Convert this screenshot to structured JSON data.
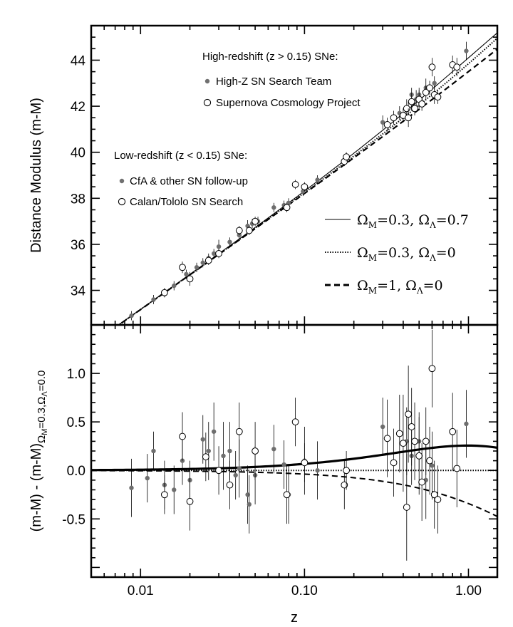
{
  "chart_data": {
    "type": "scatter",
    "x_axis": {
      "label": "z",
      "scale": "log",
      "range": [
        0.005,
        1.5
      ],
      "ticks": [
        0.01,
        0.1,
        1.0
      ],
      "tick_labels": [
        "0.01",
        "0.10",
        "1.00"
      ]
    },
    "legend": {
      "high_title": "High-redshift (z > 0.15) SNe:",
      "high_z_team": "High-Z SN Search Team",
      "scp": "Supernova Cosmology Project",
      "low_title": "Low-redshift (z < 0.15) SNe:",
      "cfa": "CfA & other SN follow-up",
      "calan": "Calan/Tololo SN Search"
    },
    "models": [
      {
        "style": "solid",
        "om": 0.3,
        "ol": 0.7
      },
      {
        "style": "dotted",
        "om": 0.3,
        "ol": 0.0
      },
      {
        "style": "dashed",
        "om": 1.0,
        "ol": 0.0
      }
    ],
    "top_panel": {
      "ylabel": "Distance Modulus (m-M)",
      "ylim": [
        32.5,
        45.5
      ],
      "ticks": [
        34,
        36,
        38,
        40,
        42,
        44
      ],
      "filled": [
        [
          0.0088,
          32.9,
          0.2
        ],
        [
          0.012,
          33.6,
          0.2
        ],
        [
          0.014,
          33.9,
          0.2
        ],
        [
          0.016,
          34.2,
          0.2
        ],
        [
          0.019,
          34.7,
          0.2
        ],
        [
          0.022,
          35.0,
          0.2
        ],
        [
          0.024,
          35.2,
          0.2
        ],
        [
          0.026,
          35.4,
          0.2
        ],
        [
          0.028,
          35.6,
          0.2
        ],
        [
          0.03,
          35.9,
          0.3
        ],
        [
          0.035,
          36.1,
          0.2
        ],
        [
          0.04,
          36.4,
          0.2
        ],
        [
          0.045,
          36.8,
          0.25
        ],
        [
          0.048,
          36.9,
          0.2
        ],
        [
          0.052,
          37.0,
          0.2
        ],
        [
          0.065,
          37.6,
          0.2
        ],
        [
          0.075,
          37.7,
          0.2
        ],
        [
          0.08,
          37.8,
          0.2
        ],
        [
          0.098,
          38.3,
          0.2
        ],
        [
          0.12,
          38.8,
          0.2
        ],
        [
          0.3,
          41.3,
          0.3
        ],
        [
          0.38,
          41.7,
          0.3
        ],
        [
          0.43,
          41.9,
          0.3
        ],
        [
          0.45,
          42.5,
          0.3
        ],
        [
          0.48,
          42.3,
          0.4
        ],
        [
          0.5,
          42.5,
          0.3
        ],
        [
          0.55,
          42.8,
          0.4
        ],
        [
          0.62,
          43.0,
          0.3
        ],
        [
          0.97,
          44.4,
          0.4
        ]
      ],
      "open": [
        [
          0.014,
          33.9,
          0.2
        ],
        [
          0.018,
          35.0,
          0.25
        ],
        [
          0.02,
          34.5,
          0.3
        ],
        [
          0.026,
          35.3,
          0.2
        ],
        [
          0.03,
          35.6,
          0.2
        ],
        [
          0.04,
          36.6,
          0.2
        ],
        [
          0.046,
          36.6,
          0.2
        ],
        [
          0.05,
          37.0,
          0.2
        ],
        [
          0.078,
          37.6,
          0.2
        ],
        [
          0.088,
          38.6,
          0.2
        ],
        [
          0.1,
          38.5,
          0.2
        ],
        [
          0.175,
          39.6,
          0.2
        ],
        [
          0.18,
          39.8,
          0.2
        ],
        [
          0.32,
          41.2,
          0.3
        ],
        [
          0.35,
          41.5,
          0.3
        ],
        [
          0.4,
          41.6,
          0.3
        ],
        [
          0.42,
          41.9,
          0.4
        ],
        [
          0.43,
          41.5,
          0.4
        ],
        [
          0.45,
          42.2,
          0.4
        ],
        [
          0.47,
          41.9,
          0.3
        ],
        [
          0.5,
          42.3,
          0.4
        ],
        [
          0.52,
          42.1,
          0.3
        ],
        [
          0.55,
          42.6,
          0.3
        ],
        [
          0.58,
          42.8,
          0.3
        ],
        [
          0.6,
          43.7,
          0.4
        ],
        [
          0.62,
          42.5,
          0.4
        ],
        [
          0.65,
          42.4,
          0.3
        ],
        [
          0.8,
          43.8,
          0.4
        ],
        [
          0.85,
          43.7,
          0.4
        ]
      ]
    },
    "bottom_panel": {
      "ylabel_parts": [
        "(m-M) - (m-M)",
        "Ω",
        "M",
        "=0.3,",
        "Ω",
        "Λ",
        "=0.0"
      ],
      "ylim": [
        -1.1,
        1.5
      ],
      "ticks": [
        -0.5,
        0.0,
        0.5,
        1.0
      ],
      "tick_labels": [
        "-0.5",
        "0.0",
        "0.5",
        "1.0"
      ],
      "filled": [
        [
          0.0088,
          -0.18,
          0.3
        ],
        [
          0.011,
          -0.08,
          0.25
        ],
        [
          0.012,
          0.2,
          0.2
        ],
        [
          0.014,
          -0.15,
          0.25
        ],
        [
          0.016,
          -0.2,
          0.25
        ],
        [
          0.018,
          0.1,
          0.25
        ],
        [
          0.02,
          -0.1,
          0.2
        ],
        [
          0.024,
          0.32,
          0.25
        ],
        [
          0.026,
          0.2,
          0.3
        ],
        [
          0.028,
          0.4,
          0.3
        ],
        [
          0.032,
          0.15,
          0.35
        ],
        [
          0.035,
          0.2,
          0.3
        ],
        [
          0.038,
          -0.05,
          0.25
        ],
        [
          0.04,
          0.02,
          0.3
        ],
        [
          0.045,
          -0.25,
          0.3
        ],
        [
          0.046,
          -0.35,
          0.3
        ],
        [
          0.05,
          -0.05,
          0.3
        ],
        [
          0.065,
          0.22,
          0.25
        ],
        [
          0.075,
          0.06,
          0.25
        ],
        [
          0.08,
          -0.25,
          0.3
        ],
        [
          0.1,
          0.1,
          0.35
        ],
        [
          0.12,
          0.0,
          0.3
        ],
        [
          0.3,
          0.45,
          0.3
        ],
        [
          0.42,
          0.3,
          0.35
        ],
        [
          0.45,
          0.15,
          0.3
        ],
        [
          0.5,
          0.3,
          0.3
        ],
        [
          0.55,
          -0.1,
          0.4
        ],
        [
          0.6,
          0.05,
          0.35
        ],
        [
          0.97,
          0.48,
          0.35
        ]
      ],
      "open": [
        [
          0.014,
          -0.25,
          0.2
        ],
        [
          0.018,
          0.35,
          0.25
        ],
        [
          0.02,
          -0.32,
          0.3
        ],
        [
          0.025,
          0.14,
          0.25
        ],
        [
          0.03,
          0.0,
          0.25
        ],
        [
          0.035,
          -0.15,
          0.25
        ],
        [
          0.04,
          0.4,
          0.3
        ],
        [
          0.05,
          0.2,
          0.3
        ],
        [
          0.078,
          -0.25,
          0.3
        ],
        [
          0.088,
          0.5,
          0.25
        ],
        [
          0.1,
          0.08,
          0.2
        ],
        [
          0.175,
          -0.15,
          0.25
        ],
        [
          0.18,
          0.0,
          0.2
        ],
        [
          0.32,
          0.33,
          0.4
        ],
        [
          0.35,
          0.08,
          0.35
        ],
        [
          0.38,
          0.38,
          0.4
        ],
        [
          0.4,
          0.28,
          0.5
        ],
        [
          0.42,
          -0.38,
          0.55
        ],
        [
          0.43,
          0.58,
          0.5
        ],
        [
          0.45,
          0.45,
          0.4
        ],
        [
          0.47,
          0.3,
          0.4
        ],
        [
          0.5,
          0.15,
          0.4
        ],
        [
          0.52,
          -0.12,
          0.4
        ],
        [
          0.55,
          0.3,
          0.35
        ],
        [
          0.58,
          0.1,
          0.35
        ],
        [
          0.6,
          1.05,
          0.4
        ],
        [
          0.62,
          -0.25,
          0.35
        ],
        [
          0.65,
          -0.3,
          0.35
        ],
        [
          0.8,
          0.4,
          0.4
        ],
        [
          0.85,
          0.02,
          0.4
        ]
      ]
    }
  }
}
